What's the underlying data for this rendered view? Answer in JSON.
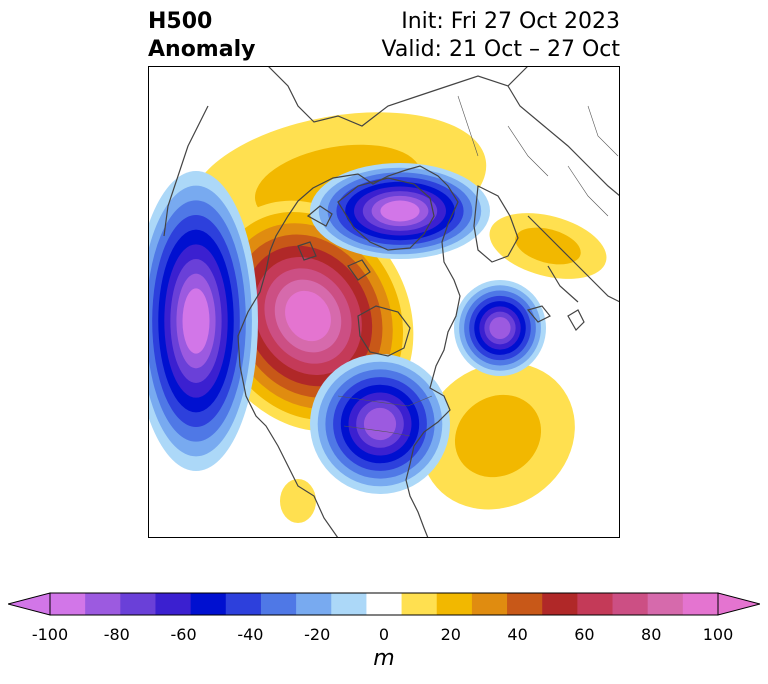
{
  "header": {
    "title_line1": "H500",
    "title_line2": "Anomaly",
    "init": "Init: Fri 27 Oct 2023",
    "valid": "Valid: 21 Oct – 27 Oct"
  },
  "colorbar": {
    "ticks": [
      "-100",
      "-80",
      "-60",
      "-40",
      "-20",
      "0",
      "20",
      "40",
      "60",
      "80",
      "100"
    ],
    "unit": "m",
    "colors": [
      "#d276e8",
      "#9c5ae0",
      "#6a40d8",
      "#3b20d0",
      "#0010d0",
      "#2d40dc",
      "#4f78e6",
      "#78aaf0",
      "#acd8f8",
      "#ffffff",
      "#ffe050",
      "#f2b800",
      "#e08c10",
      "#c85818",
      "#b02828",
      "#c43a58",
      "#cc4f84",
      "#d66aac",
      "#e474d0"
    ],
    "min": -100,
    "max": 100,
    "step": 10
  },
  "legend": {
    "neg_shades": [
      "#acd8f8",
      "#78aaf0",
      "#4f78e6",
      "#2d40dc",
      "#0010d0",
      "#3b20d0",
      "#6a40d8",
      "#9c5ae0",
      "#d276e8"
    ],
    "pos_shades": [
      "#ffe050",
      "#f2b800",
      "#e08c10",
      "#c85818",
      "#b02828",
      "#c43a58",
      "#cc4f84",
      "#d66aac",
      "#e474d0"
    ]
  }
}
